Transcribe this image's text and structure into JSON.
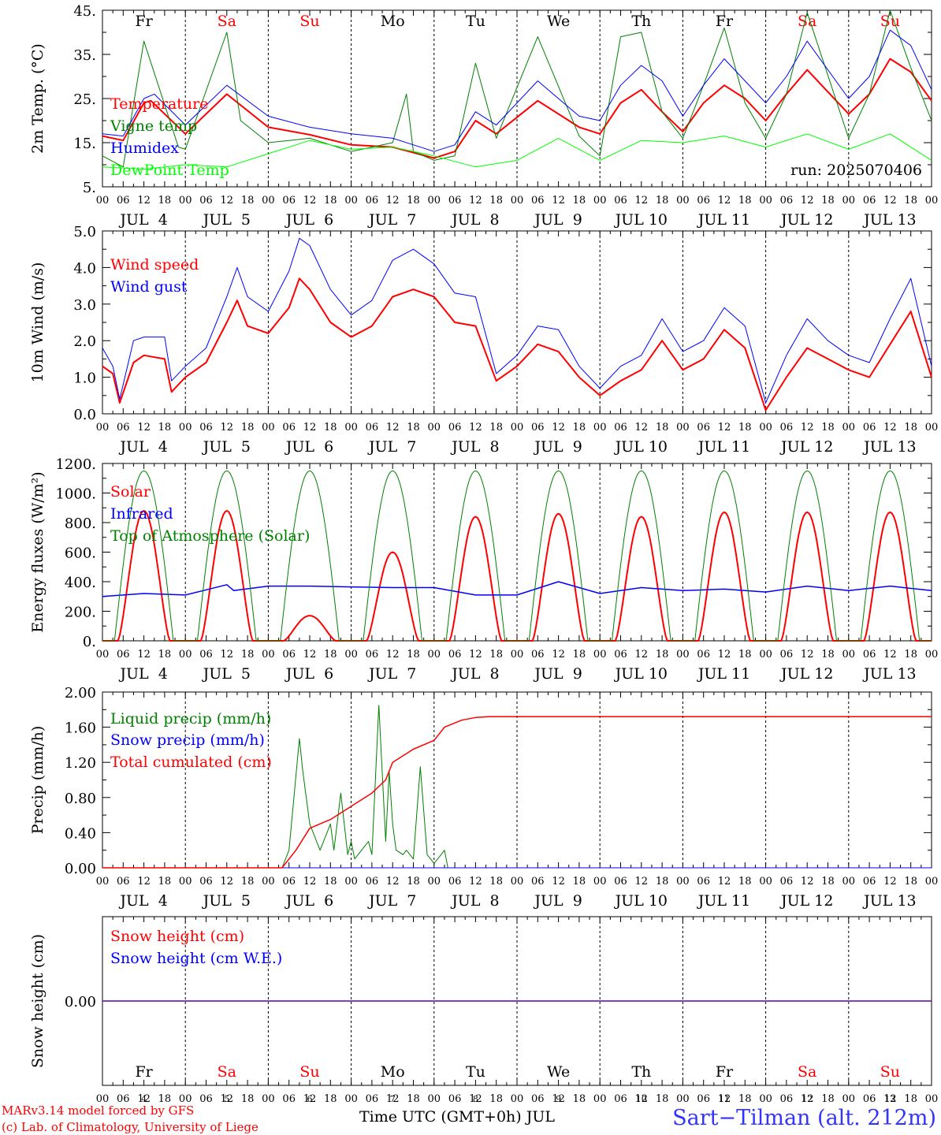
{
  "chart_data": {
    "type": "line",
    "x_axis": {
      "hour_ticks": [
        "00",
        "06",
        "12",
        "18"
      ],
      "date_labels": [
        "JUL  4",
        "JUL  5",
        "JUL  6",
        "JUL  7",
        "JUL  8",
        "JUL  9",
        "JUL 10",
        "JUL 11",
        "JUL 12",
        "JUL 13"
      ],
      "days": [
        "Fr",
        "Sa",
        "Su",
        "Mo",
        "Tu",
        "We",
        "Th",
        "Fr",
        "Sa",
        "Su"
      ],
      "day_colors": [
        "#000000",
        "#ff0000",
        "#ff0000",
        "#000000",
        "#000000",
        "#000000",
        "#000000",
        "#000000",
        "#ff0000",
        "#ff0000"
      ],
      "day_numbers": [
        "4",
        "5",
        "6",
        "7",
        "8",
        "9",
        "10",
        "11",
        "12",
        "13"
      ],
      "range_hours": [
        0,
        240
      ]
    },
    "panels": [
      {
        "ylabel": "2m Temp. (°C)",
        "ylim": [
          5,
          45
        ],
        "yticks": [
          "45.",
          "35.",
          "25.",
          "15.",
          "5."
        ],
        "ytick_values": [
          45,
          35,
          25,
          15,
          5
        ],
        "show_days": true,
        "show_dates": true,
        "annotation": "run: 2025070406",
        "series": [
          {
            "name": "Temperature",
            "color": "#ff0000",
            "width": 2,
            "t": [
              0,
              6,
              12,
              14,
              24,
              36,
              48,
              60,
              72,
              84,
              96,
              102,
              108,
              114,
              126,
              138,
              144,
              150,
              156,
              162,
              168,
              174,
              180,
              186,
              192,
              198,
              204,
              216,
              222,
              228,
              234,
              240
            ],
            "values": [
              16.5,
              15.5,
              24,
              24.5,
              17,
              26,
              18.5,
              16.8,
              14.5,
              14,
              11.5,
              13,
              20,
              17,
              24.5,
              18.5,
              17,
              24,
              27,
              22,
              17.5,
              24,
              28,
              25,
              20,
              26,
              31.5,
              21.5,
              26,
              34,
              31,
              24.5
            ]
          },
          {
            "name": "Vigne temp",
            "color": "#008000",
            "width": 1,
            "t": [
              0,
              6,
              12,
              22,
              24,
              36,
              40,
              48,
              60,
              72,
              84,
              88,
              90,
              96,
              102,
              108,
              114,
              126,
              138,
              144,
              150,
              156,
              162,
              168,
              174,
              180,
              186,
              192,
              198,
              204,
              216,
              222,
              228,
              234,
              240
            ],
            "values": [
              12,
              9.5,
              38,
              14,
              13.5,
              40,
              20,
              15,
              16,
              13,
              15,
              26,
              13,
              11,
              12,
              33,
              16,
              39,
              16.5,
              12,
              39,
              40,
              22,
              16,
              28,
              41,
              24,
              16,
              26,
              44.5,
              16,
              26,
              45.5,
              32,
              20
            ]
          },
          {
            "name": "Humidex",
            "color": "#0000ff",
            "width": 1,
            "t": [
              0,
              6,
              12,
              15,
              24,
              36,
              48,
              60,
              72,
              84,
              96,
              102,
              108,
              114,
              126,
              138,
              144,
              150,
              156,
              162,
              168,
              174,
              180,
              186,
              192,
              198,
              204,
              216,
              222,
              228,
              234,
              240
            ],
            "values": [
              17,
              16.5,
              25,
              26,
              19,
              28,
              21,
              18.5,
              17,
              16,
              13,
              14.5,
              22,
              19,
              29,
              21,
              20,
              28,
              32.5,
              29,
              21,
              28,
              34,
              29,
              24,
              30,
              38,
              25,
              30,
              40.5,
              37,
              27
            ]
          },
          {
            "name": "DewPoint Temp",
            "color": "#00ff00",
            "width": 1,
            "t": [
              0,
              12,
              24,
              36,
              48,
              60,
              72,
              84,
              96,
              108,
              120,
              132,
              144,
              156,
              168,
              180,
              192,
              204,
              216,
              228,
              240
            ],
            "values": [
              9.5,
              9,
              10,
              9.5,
              12.5,
              15.5,
              13.5,
              14,
              12,
              9.5,
              11,
              16,
              11,
              15.5,
              15,
              16.5,
              14,
              17,
              13.5,
              17,
              11
            ]
          }
        ]
      },
      {
        "ylabel": "10m Wind (m/s)",
        "ylim": [
          0,
          5
        ],
        "yticks": [
          "5.0",
          "4.0",
          "3.0",
          "2.0",
          "1.0",
          "0.0"
        ],
        "ytick_values": [
          5,
          4,
          3,
          2,
          1,
          0
        ],
        "show_days": false,
        "show_dates": true,
        "series": [
          {
            "name": "Wind speed",
            "color": "#ff0000",
            "width": 2,
            "t": [
              0,
              3,
              5,
              9,
              12,
              18,
              20,
              24,
              30,
              36,
              39,
              42,
              48,
              54,
              57,
              60,
              66,
              72,
              78,
              84,
              90,
              96,
              102,
              108,
              114,
              120,
              126,
              132,
              138,
              144,
              150,
              156,
              162,
              168,
              174,
              180,
              186,
              192,
              198,
              204,
              210,
              216,
              222,
              228,
              234,
              240
            ],
            "values": [
              1.3,
              1.1,
              0.3,
              1.4,
              1.6,
              1.5,
              0.6,
              1.0,
              1.4,
              2.5,
              3.1,
              2.4,
              2.2,
              2.9,
              3.7,
              3.4,
              2.5,
              2.1,
              2.4,
              3.2,
              3.4,
              3.2,
              2.5,
              2.4,
              0.9,
              1.3,
              1.9,
              1.7,
              1.0,
              0.5,
              0.9,
              1.2,
              2.0,
              1.2,
              1.5,
              2.3,
              1.8,
              0.1,
              1.0,
              1.8,
              1.5,
              1.2,
              1.0,
              1.9,
              2.8,
              1.0
            ]
          },
          {
            "name": "Wind gust",
            "color": "#0000ff",
            "width": 1,
            "t": [
              0,
              3,
              5,
              9,
              12,
              18,
              20,
              24,
              30,
              36,
              39,
              42,
              48,
              54,
              57,
              60,
              66,
              72,
              78,
              84,
              90,
              96,
              102,
              108,
              114,
              120,
              126,
              132,
              138,
              144,
              150,
              156,
              162,
              168,
              174,
              180,
              186,
              192,
              198,
              204,
              210,
              216,
              222,
              228,
              234,
              240
            ],
            "values": [
              1.8,
              1.3,
              0.4,
              2.0,
              2.1,
              2.1,
              0.9,
              1.3,
              1.8,
              3.2,
              4.0,
              3.2,
              2.8,
              3.9,
              4.8,
              4.6,
              3.4,
              2.7,
              3.1,
              4.2,
              4.5,
              4.1,
              3.3,
              3.2,
              1.1,
              1.6,
              2.4,
              2.3,
              1.3,
              0.7,
              1.3,
              1.6,
              2.6,
              1.7,
              2.0,
              2.9,
              2.4,
              0.3,
              1.6,
              2.6,
              2.0,
              1.6,
              1.4,
              2.6,
              3.7,
              1.3
            ]
          }
        ]
      },
      {
        "ylabel": "Energy fluxes (W/m²)",
        "ylim": [
          0,
          1200
        ],
        "yticks": [
          "1200.",
          "1000.",
          "800.",
          "600.",
          "400.",
          "200.",
          "0."
        ],
        "ytick_values": [
          1200,
          1000,
          800,
          600,
          400,
          200,
          0
        ],
        "show_days": false,
        "show_dates": true,
        "series": [
          {
            "name": "Solar",
            "color": "#ff0000",
            "width": 2,
            "peaks": [
              880,
              880,
              170,
              600,
              840,
              860,
              840,
              870,
              870,
              870
            ]
          },
          {
            "name": "Infrared",
            "color": "#0000ff",
            "width": 1.5,
            "t": [
              0,
              12,
              24,
              36,
              38,
              48,
              60,
              72,
              84,
              96,
              108,
              120,
              132,
              144,
              156,
              168,
              180,
              192,
              204,
              216,
              228,
              240
            ],
            "values": [
              300,
              320,
              310,
              380,
              340,
              370,
              370,
              365,
              360,
              360,
              310,
              310,
              400,
              320,
              360,
              340,
              350,
              330,
              370,
              340,
              370,
              340
            ]
          },
          {
            "name": "Top of Atmosphere (Solar)",
            "color": "#008000",
            "width": 1,
            "peaks": [
              1150,
              1150,
              1150,
              1150,
              1150,
              1150,
              1150,
              1150,
              1150,
              1150
            ]
          }
        ]
      },
      {
        "ylabel": "Precip (mm/h)",
        "ylim": [
          0,
          2
        ],
        "yticks": [
          "2.00",
          "1.60",
          "1.20",
          "0.80",
          "0.40",
          "0.00"
        ],
        "ytick_values": [
          2.0,
          1.6,
          1.2,
          0.8,
          0.4,
          0.0
        ],
        "show_days": false,
        "show_dates": true,
        "series": [
          {
            "name": "Liquid precip (mm/h)",
            "color": "#008000",
            "width": 1,
            "t": [
              0,
              52,
              54,
              57,
              58,
              60,
              63,
              66,
              67,
              69,
              71,
              72,
              73,
              75,
              77,
              78,
              80,
              82,
              83,
              84,
              85,
              87,
              88,
              90,
              92,
              94,
              96,
              98,
              99,
              100,
              102,
              104,
              240
            ],
            "values": [
              0,
              0,
              0.2,
              1.47,
              1.1,
              0.5,
              0.2,
              0.5,
              0.2,
              0.85,
              0.15,
              0.3,
              0.1,
              0.2,
              0.3,
              0.15,
              1.85,
              0.3,
              1.1,
              0.5,
              0.2,
              0.15,
              0.2,
              0.1,
              1.15,
              0.15,
              0.05,
              0.15,
              0.2,
              0,
              0,
              0,
              0
            ]
          },
          {
            "name": "Snow precip (mm/h)",
            "color": "#0000ff",
            "width": 1,
            "t": [
              0,
              240
            ],
            "values": [
              0,
              0
            ]
          },
          {
            "name": "Total cumulated (cm)",
            "color": "#ff0000",
            "width": 1.5,
            "t": [
              0,
              52,
              56,
              60,
              66,
              72,
              78,
              82,
              84,
              90,
              96,
              99,
              104,
              108,
              112,
              240
            ],
            "values": [
              0,
              0,
              0.2,
              0.45,
              0.55,
              0.7,
              0.85,
              1.0,
              1.2,
              1.35,
              1.45,
              1.6,
              1.68,
              1.71,
              1.72,
              1.72
            ]
          }
        ]
      },
      {
        "ylabel": "Snow height (cm)",
        "ylim": [
          -1,
          1
        ],
        "yticks": [
          "0.00"
        ],
        "ytick_values": [
          0
        ],
        "show_days": true,
        "show_dates": false,
        "series": [
          {
            "name": "Snow height (cm)",
            "color": "#ff0000",
            "width": 1.5,
            "t": [
              0,
              240
            ],
            "values": [
              0,
              0
            ]
          },
          {
            "name": "Snow height (cm W.E.)",
            "color": "#0000ff",
            "width": 1,
            "t": [
              0,
              240
            ],
            "values": [
              0,
              0
            ]
          }
        ]
      }
    ]
  },
  "footer": {
    "model_line": "MARv3.14 model forced by GFS",
    "copyright_line": "(c) Lab. of Climatology, University of Liege",
    "xlabel": "Time UTC (GMT+0h) JUL",
    "station": "Sart−Tilman (alt. 212m)"
  }
}
